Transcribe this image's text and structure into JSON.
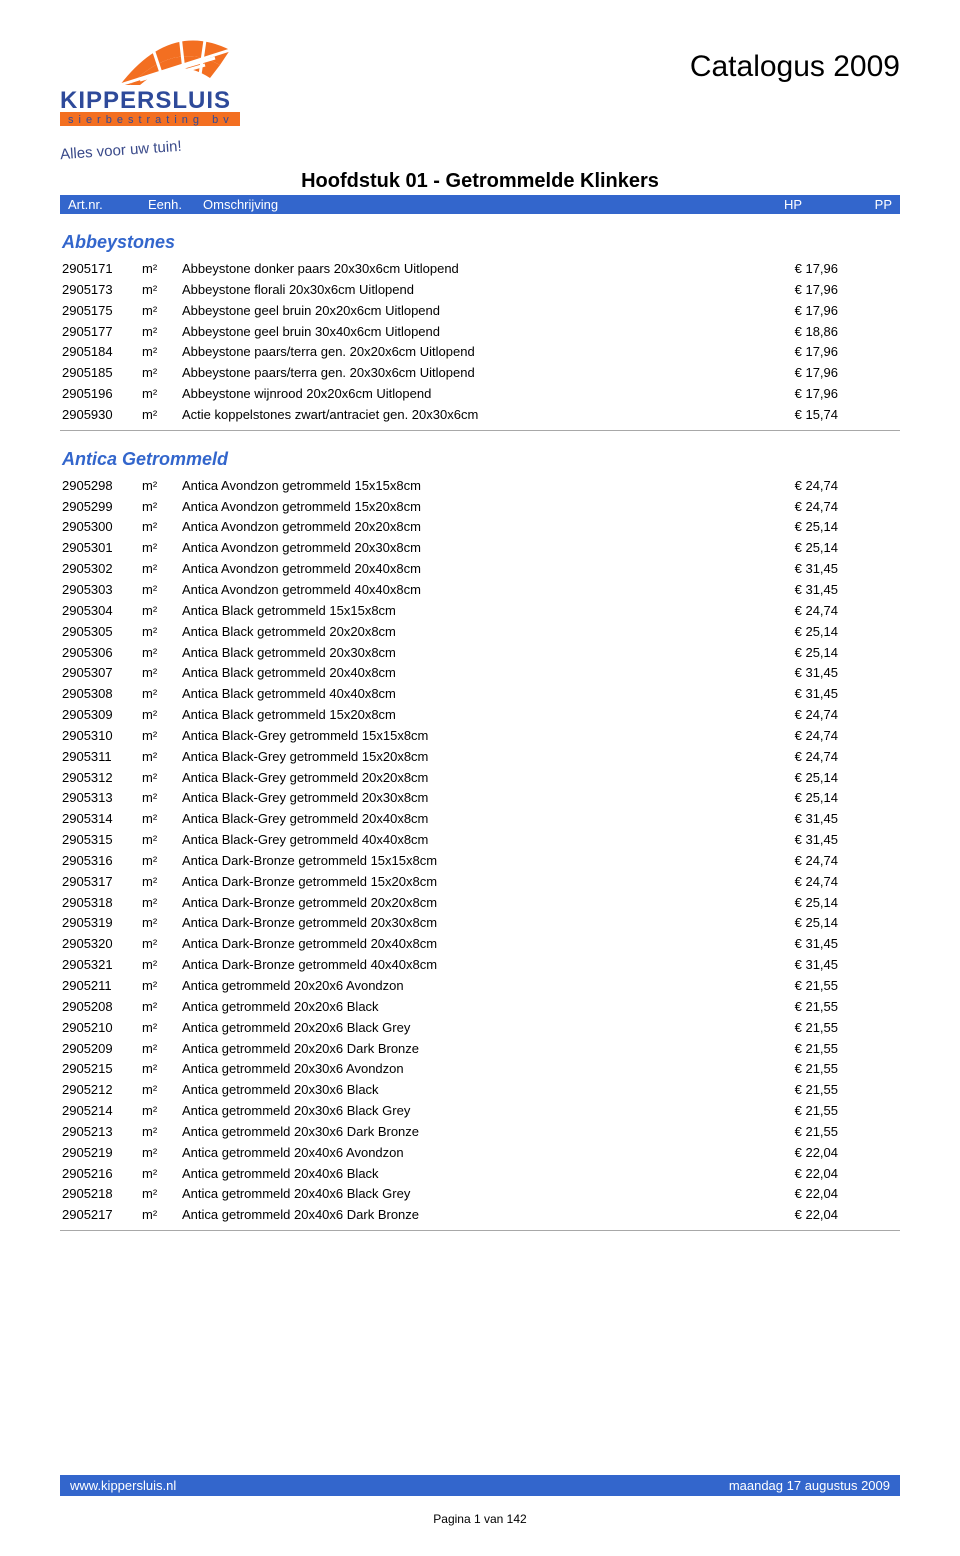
{
  "document": {
    "catalog_title": "Catalogus 2009",
    "chapter_title": "Hoofdstuk 01 - Getrommelde Klinkers",
    "logo": {
      "company_name": "KIPPERSLUIS",
      "subline": "sierbestrating bv",
      "tagline": "Alles voor uw tuin!",
      "brand_blue": "#2e4a9a",
      "brand_orange": "#f36f21"
    },
    "column_header": {
      "art": "Art.nr.",
      "eenh": "Eenh.",
      "omsch": "Omschrijving",
      "hp": "HP",
      "pp": "PP",
      "bg_color": "#3366cc",
      "fg_color": "#ffffff"
    },
    "sections": [
      {
        "title": "Abbeystones",
        "rows": [
          {
            "art": "2905171",
            "eenh": "m²",
            "desc": "Abbeystone donker paars 20x30x6cm  Uitlopend",
            "hp": "€ 17,96"
          },
          {
            "art": "2905173",
            "eenh": "m²",
            "desc": "Abbeystone florali 20x30x6cm  Uitlopend",
            "hp": "€ 17,96"
          },
          {
            "art": "2905175",
            "eenh": "m²",
            "desc": "Abbeystone geel bruin 20x20x6cm Uitlopend",
            "hp": "€ 17,96"
          },
          {
            "art": "2905177",
            "eenh": "m²",
            "desc": "Abbeystone geel bruin 30x40x6cm Uitlopend",
            "hp": "€ 18,86"
          },
          {
            "art": "2905184",
            "eenh": "m²",
            "desc": "Abbeystone paars/terra gen. 20x20x6cm  Uitlopend",
            "hp": "€ 17,96"
          },
          {
            "art": "2905185",
            "eenh": "m²",
            "desc": "Abbeystone paars/terra gen. 20x30x6cm  Uitlopend",
            "hp": "€ 17,96"
          },
          {
            "art": "2905196",
            "eenh": "m²",
            "desc": "Abbeystone wijnrood 20x20x6cm  Uitlopend",
            "hp": "€ 17,96"
          },
          {
            "art": "2905930",
            "eenh": "m²",
            "desc": "Actie koppelstones zwart/antraciet gen. 20x30x6cm",
            "hp": "€ 15,74"
          }
        ]
      },
      {
        "title": "Antica Getrommeld",
        "rows": [
          {
            "art": "2905298",
            "eenh": "m²",
            "desc": "Antica Avondzon getrommeld  15x15x8cm",
            "hp": "€ 24,74"
          },
          {
            "art": "2905299",
            "eenh": "m²",
            "desc": "Antica Avondzon getrommeld  15x20x8cm",
            "hp": "€ 24,74"
          },
          {
            "art": "2905300",
            "eenh": "m²",
            "desc": "Antica Avondzon getrommeld  20x20x8cm",
            "hp": "€ 25,14"
          },
          {
            "art": "2905301",
            "eenh": "m²",
            "desc": "Antica Avondzon getrommeld  20x30x8cm",
            "hp": "€ 25,14"
          },
          {
            "art": "2905302",
            "eenh": "m²",
            "desc": "Antica Avondzon getrommeld  20x40x8cm",
            "hp": "€ 31,45"
          },
          {
            "art": "2905303",
            "eenh": "m²",
            "desc": "Antica Avondzon getrommeld  40x40x8cm",
            "hp": "€ 31,45"
          },
          {
            "art": "2905304",
            "eenh": "m²",
            "desc": "Antica Black getrommeld  15x15x8cm",
            "hp": "€ 24,74"
          },
          {
            "art": "2905305",
            "eenh": "m²",
            "desc": "Antica Black getrommeld  20x20x8cm",
            "hp": "€ 25,14"
          },
          {
            "art": "2905306",
            "eenh": "m²",
            "desc": "Antica Black getrommeld  20x30x8cm",
            "hp": "€ 25,14"
          },
          {
            "art": "2905307",
            "eenh": "m²",
            "desc": "Antica Black getrommeld  20x40x8cm",
            "hp": "€ 31,45"
          },
          {
            "art": "2905308",
            "eenh": "m²",
            "desc": "Antica Black getrommeld  40x40x8cm",
            "hp": "€ 31,45"
          },
          {
            "art": "2905309",
            "eenh": "m²",
            "desc": "Antica Black getrommeld 15x20x8cm",
            "hp": "€ 24,74"
          },
          {
            "art": "2905310",
            "eenh": "m²",
            "desc": "Antica Black-Grey getrommeld  15x15x8cm",
            "hp": "€ 24,74"
          },
          {
            "art": "2905311",
            "eenh": "m²",
            "desc": "Antica Black-Grey getrommeld  15x20x8cm",
            "hp": "€ 24,74"
          },
          {
            "art": "2905312",
            "eenh": "m²",
            "desc": "Antica Black-Grey getrommeld  20x20x8cm",
            "hp": "€ 25,14"
          },
          {
            "art": "2905313",
            "eenh": "m²",
            "desc": "Antica Black-Grey getrommeld  20x30x8cm",
            "hp": "€ 25,14"
          },
          {
            "art": "2905314",
            "eenh": "m²",
            "desc": "Antica Black-Grey getrommeld  20x40x8cm",
            "hp": "€ 31,45"
          },
          {
            "art": "2905315",
            "eenh": "m²",
            "desc": "Antica Black-Grey getrommeld  40x40x8cm",
            "hp": "€ 31,45"
          },
          {
            "art": "2905316",
            "eenh": "m²",
            "desc": "Antica Dark-Bronze getrommeld  15x15x8cm",
            "hp": "€ 24,74"
          },
          {
            "art": "2905317",
            "eenh": "m²",
            "desc": "Antica Dark-Bronze getrommeld  15x20x8cm",
            "hp": "€ 24,74"
          },
          {
            "art": "2905318",
            "eenh": "m²",
            "desc": "Antica Dark-Bronze getrommeld  20x20x8cm",
            "hp": "€ 25,14"
          },
          {
            "art": "2905319",
            "eenh": "m²",
            "desc": "Antica Dark-Bronze getrommeld  20x30x8cm",
            "hp": "€ 25,14"
          },
          {
            "art": "2905320",
            "eenh": "m²",
            "desc": "Antica Dark-Bronze getrommeld  20x40x8cm",
            "hp": "€ 31,45"
          },
          {
            "art": "2905321",
            "eenh": "m²",
            "desc": "Antica Dark-Bronze getrommeld  40x40x8cm",
            "hp": "€ 31,45"
          },
          {
            "art": "2905211",
            "eenh": "m²",
            "desc": "Antica getrommeld 20x20x6 Avondzon",
            "hp": "€ 21,55"
          },
          {
            "art": "2905208",
            "eenh": "m²",
            "desc": "Antica getrommeld 20x20x6 Black",
            "hp": "€ 21,55"
          },
          {
            "art": "2905210",
            "eenh": "m²",
            "desc": "Antica getrommeld 20x20x6 Black Grey",
            "hp": "€ 21,55"
          },
          {
            "art": "2905209",
            "eenh": "m²",
            "desc": "Antica getrommeld 20x20x6 Dark Bronze",
            "hp": "€ 21,55"
          },
          {
            "art": "2905215",
            "eenh": "m²",
            "desc": "Antica getrommeld 20x30x6 Avondzon",
            "hp": "€ 21,55"
          },
          {
            "art": "2905212",
            "eenh": "m²",
            "desc": "Antica getrommeld 20x30x6 Black",
            "hp": "€ 21,55"
          },
          {
            "art": "2905214",
            "eenh": "m²",
            "desc": "Antica getrommeld 20x30x6 Black Grey",
            "hp": "€ 21,55"
          },
          {
            "art": "2905213",
            "eenh": "m²",
            "desc": "Antica getrommeld 20x30x6 Dark Bronze",
            "hp": "€ 21,55"
          },
          {
            "art": "2905219",
            "eenh": "m²",
            "desc": "Antica getrommeld 20x40x6 Avondzon",
            "hp": "€ 22,04"
          },
          {
            "art": "2905216",
            "eenh": "m²",
            "desc": "Antica getrommeld 20x40x6 Black",
            "hp": "€ 22,04"
          },
          {
            "art": "2905218",
            "eenh": "m²",
            "desc": "Antica getrommeld 20x40x6 Black Grey",
            "hp": "€ 22,04"
          },
          {
            "art": "2905217",
            "eenh": "m²",
            "desc": "Antica getrommeld 20x40x6 Dark Bronze",
            "hp": "€ 22,04"
          }
        ]
      }
    ],
    "footer": {
      "url": "www.kippersluis.nl",
      "date": "maandag 17 augustus 2009",
      "page": "Pagina 1 van 142",
      "bg_color": "#3366cc",
      "fg_color": "#ffffff"
    }
  }
}
